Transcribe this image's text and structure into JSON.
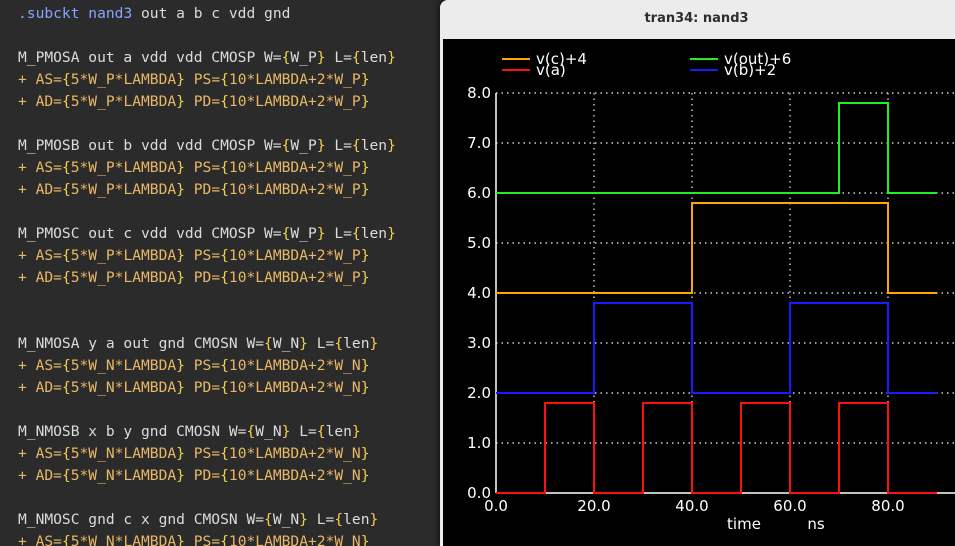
{
  "editor": {
    "lines": [
      [
        {
          "t": ".subckt ",
          "c": "dir"
        },
        {
          "t": "nand3",
          "c": "name"
        },
        {
          "t": " out a b c vdd gnd",
          "c": "text"
        }
      ],
      [],
      [
        {
          "t": "M_PMOSA out a vdd vdd CMOSP W=",
          "c": "text"
        },
        {
          "t": "{",
          "c": "brace"
        },
        {
          "t": "W_P",
          "c": "text"
        },
        {
          "t": "}",
          "c": "brace"
        },
        {
          "t": " L=",
          "c": "text"
        },
        {
          "t": "{",
          "c": "brace"
        },
        {
          "t": "len",
          "c": "text"
        },
        {
          "t": "}",
          "c": "brace"
        }
      ],
      [
        {
          "t": "+ AS=",
          "c": "cont"
        },
        {
          "t": "{",
          "c": "brace"
        },
        {
          "t": "5*W_P*LAMBDA",
          "c": "cont"
        },
        {
          "t": "}",
          "c": "brace"
        },
        {
          "t": " PS=",
          "c": "cont"
        },
        {
          "t": "{",
          "c": "brace"
        },
        {
          "t": "10*LAMBDA+2*W_P",
          "c": "cont"
        },
        {
          "t": "}",
          "c": "brace"
        }
      ],
      [
        {
          "t": "+ AD=",
          "c": "cont"
        },
        {
          "t": "{",
          "c": "brace"
        },
        {
          "t": "5*W_P*LAMBDA",
          "c": "cont"
        },
        {
          "t": "}",
          "c": "brace"
        },
        {
          "t": " PD=",
          "c": "cont"
        },
        {
          "t": "{",
          "c": "brace"
        },
        {
          "t": "10*LAMBDA+2*W_P",
          "c": "cont"
        },
        {
          "t": "}",
          "c": "brace"
        }
      ],
      [],
      [
        {
          "t": "M_PMOSB out b vdd vdd CMOSP W=",
          "c": "text"
        },
        {
          "t": "{",
          "c": "brace"
        },
        {
          "t": "W_P",
          "c": "text"
        },
        {
          "t": "}",
          "c": "brace"
        },
        {
          "t": " L=",
          "c": "text"
        },
        {
          "t": "{",
          "c": "brace"
        },
        {
          "t": "len",
          "c": "text"
        },
        {
          "t": "}",
          "c": "brace"
        }
      ],
      [
        {
          "t": "+ AS=",
          "c": "cont"
        },
        {
          "t": "{",
          "c": "brace"
        },
        {
          "t": "5*W_P*LAMBDA",
          "c": "cont"
        },
        {
          "t": "}",
          "c": "brace"
        },
        {
          "t": " PS=",
          "c": "cont"
        },
        {
          "t": "{",
          "c": "brace"
        },
        {
          "t": "10*LAMBDA+2*W_P",
          "c": "cont"
        },
        {
          "t": "}",
          "c": "brace"
        }
      ],
      [
        {
          "t": "+ AD=",
          "c": "cont"
        },
        {
          "t": "{",
          "c": "brace"
        },
        {
          "t": "5*W_P*LAMBDA",
          "c": "cont"
        },
        {
          "t": "}",
          "c": "brace"
        },
        {
          "t": " PD=",
          "c": "cont"
        },
        {
          "t": "{",
          "c": "brace"
        },
        {
          "t": "10*LAMBDA+2*W_P",
          "c": "cont"
        },
        {
          "t": "}",
          "c": "brace"
        }
      ],
      [],
      [
        {
          "t": "M_PMOSC out c vdd vdd CMOSP W=",
          "c": "text"
        },
        {
          "t": "{",
          "c": "brace"
        },
        {
          "t": "W_P",
          "c": "text"
        },
        {
          "t": "}",
          "c": "brace"
        },
        {
          "t": " L=",
          "c": "text"
        },
        {
          "t": "{",
          "c": "brace"
        },
        {
          "t": "len",
          "c": "text"
        },
        {
          "t": "}",
          "c": "brace"
        }
      ],
      [
        {
          "t": "+ AS=",
          "c": "cont"
        },
        {
          "t": "{",
          "c": "brace"
        },
        {
          "t": "5*W_P*LAMBDA",
          "c": "cont"
        },
        {
          "t": "}",
          "c": "brace"
        },
        {
          "t": " PS=",
          "c": "cont"
        },
        {
          "t": "{",
          "c": "brace"
        },
        {
          "t": "10*LAMBDA+2*W_P",
          "c": "cont"
        },
        {
          "t": "}",
          "c": "brace"
        }
      ],
      [
        {
          "t": "+ AD=",
          "c": "cont"
        },
        {
          "t": "{",
          "c": "brace"
        },
        {
          "t": "5*W_P*LAMBDA",
          "c": "cont"
        },
        {
          "t": "}",
          "c": "brace"
        },
        {
          "t": " PD=",
          "c": "cont"
        },
        {
          "t": "{",
          "c": "brace"
        },
        {
          "t": "10*LAMBDA+2*W_P",
          "c": "cont"
        },
        {
          "t": "}",
          "c": "brace"
        }
      ],
      [],
      [],
      [
        {
          "t": "M_NMOSA y a out gnd CMOSN W=",
          "c": "text"
        },
        {
          "t": "{",
          "c": "brace"
        },
        {
          "t": "W_N",
          "c": "text"
        },
        {
          "t": "}",
          "c": "brace"
        },
        {
          "t": " L=",
          "c": "text"
        },
        {
          "t": "{",
          "c": "brace"
        },
        {
          "t": "len",
          "c": "text"
        },
        {
          "t": "}",
          "c": "brace"
        }
      ],
      [
        {
          "t": "+ AS=",
          "c": "cont"
        },
        {
          "t": "{",
          "c": "brace"
        },
        {
          "t": "5*W_N*LAMBDA",
          "c": "cont"
        },
        {
          "t": "}",
          "c": "brace"
        },
        {
          "t": " PS=",
          "c": "cont"
        },
        {
          "t": "{",
          "c": "brace"
        },
        {
          "t": "10*LAMBDA+2*W_N",
          "c": "cont"
        },
        {
          "t": "}",
          "c": "brace"
        }
      ],
      [
        {
          "t": "+ AD=",
          "c": "cont"
        },
        {
          "t": "{",
          "c": "brace"
        },
        {
          "t": "5*W_N*LAMBDA",
          "c": "cont"
        },
        {
          "t": "}",
          "c": "brace"
        },
        {
          "t": " PD=",
          "c": "cont"
        },
        {
          "t": "{",
          "c": "brace"
        },
        {
          "t": "10*LAMBDA+2*W_N",
          "c": "cont"
        },
        {
          "t": "}",
          "c": "brace"
        }
      ],
      [],
      [
        {
          "t": "M_NMOSB x b y gnd CMOSN W=",
          "c": "text"
        },
        {
          "t": "{",
          "c": "brace"
        },
        {
          "t": "W_N",
          "c": "text"
        },
        {
          "t": "}",
          "c": "brace"
        },
        {
          "t": " L=",
          "c": "text"
        },
        {
          "t": "{",
          "c": "brace"
        },
        {
          "t": "len",
          "c": "text"
        },
        {
          "t": "}",
          "c": "brace"
        }
      ],
      [
        {
          "t": "+ AS=",
          "c": "cont"
        },
        {
          "t": "{",
          "c": "brace"
        },
        {
          "t": "5*W_N*LAMBDA",
          "c": "cont"
        },
        {
          "t": "}",
          "c": "brace"
        },
        {
          "t": " PS=",
          "c": "cont"
        },
        {
          "t": "{",
          "c": "brace"
        },
        {
          "t": "10*LAMBDA+2*W_N",
          "c": "cont"
        },
        {
          "t": "}",
          "c": "brace"
        }
      ],
      [
        {
          "t": "+ AD=",
          "c": "cont"
        },
        {
          "t": "{",
          "c": "brace"
        },
        {
          "t": "5*W_N*LAMBDA",
          "c": "cont"
        },
        {
          "t": "}",
          "c": "brace"
        },
        {
          "t": " PD=",
          "c": "cont"
        },
        {
          "t": "{",
          "c": "brace"
        },
        {
          "t": "10*LAMBDA+2*W_N",
          "c": "cont"
        },
        {
          "t": "}",
          "c": "brace"
        }
      ],
      [],
      [
        {
          "t": "M_NMOSC gnd c x gnd CMOSN W=",
          "c": "text"
        },
        {
          "t": "{",
          "c": "brace"
        },
        {
          "t": "W_N",
          "c": "text"
        },
        {
          "t": "}",
          "c": "brace"
        },
        {
          "t": " L=",
          "c": "text"
        },
        {
          "t": "{",
          "c": "brace"
        },
        {
          "t": "len",
          "c": "text"
        },
        {
          "t": "}",
          "c": "brace"
        }
      ],
      [
        {
          "t": "+ AS=",
          "c": "cont"
        },
        {
          "t": "{",
          "c": "brace"
        },
        {
          "t": "5*W_N*LAMBDA",
          "c": "cont"
        },
        {
          "t": "}",
          "c": "brace"
        },
        {
          "t": " PS=",
          "c": "cont"
        },
        {
          "t": "{",
          "c": "brace"
        },
        {
          "t": "10*LAMBDA+2*W_N",
          "c": "cont"
        },
        {
          "t": "}",
          "c": "brace"
        }
      ]
    ]
  },
  "window": {
    "title": "tran34: nand3"
  },
  "chart_data": {
    "type": "line",
    "title": "",
    "xlabel": "time",
    "xunit": "ns",
    "ylabel": "",
    "xlim": [
      0,
      90
    ],
    "ylim": [
      0,
      8
    ],
    "x_ticks": [
      0,
      20,
      40,
      60,
      80
    ],
    "x_tick_labels": [
      "0.0",
      "20.0",
      "40.0",
      "60.0",
      "80.0"
    ],
    "y_ticks": [
      0,
      1,
      2,
      3,
      4,
      5,
      6,
      7,
      8
    ],
    "y_tick_labels": [
      "0.0",
      "1.0",
      "2.0",
      "3.0",
      "4.0",
      "5.0",
      "6.0",
      "7.0",
      "8.0"
    ],
    "grid": true,
    "legend_position": "top",
    "background": "#000000",
    "series": [
      {
        "name": "v(c)+4",
        "color": "#ffa500",
        "x": [
          0,
          40,
          40,
          80,
          80,
          90
        ],
        "y": [
          4,
          4,
          5.8,
          5.8,
          4,
          4
        ]
      },
      {
        "name": "v(a)",
        "color": "#ff1010",
        "x": [
          0,
          10,
          10,
          20,
          20,
          30,
          30,
          40,
          40,
          50,
          50,
          60,
          60,
          70,
          70,
          80,
          80,
          90
        ],
        "y": [
          0,
          0,
          1.8,
          1.8,
          0,
          0,
          1.8,
          1.8,
          0,
          0,
          1.8,
          1.8,
          0,
          0,
          1.8,
          1.8,
          0,
          0
        ]
      },
      {
        "name": "v(out)+6",
        "color": "#22ee22",
        "x": [
          0,
          70,
          70,
          80,
          80,
          90
        ],
        "y": [
          6,
          6,
          7.8,
          7.8,
          6,
          6
        ]
      },
      {
        "name": "v(b)+2",
        "color": "#1a1aff",
        "x": [
          0,
          20,
          20,
          40,
          40,
          60,
          60,
          80,
          80,
          90
        ],
        "y": [
          2,
          2,
          3.8,
          3.8,
          2,
          2,
          3.8,
          3.8,
          2,
          2
        ]
      }
    ]
  }
}
